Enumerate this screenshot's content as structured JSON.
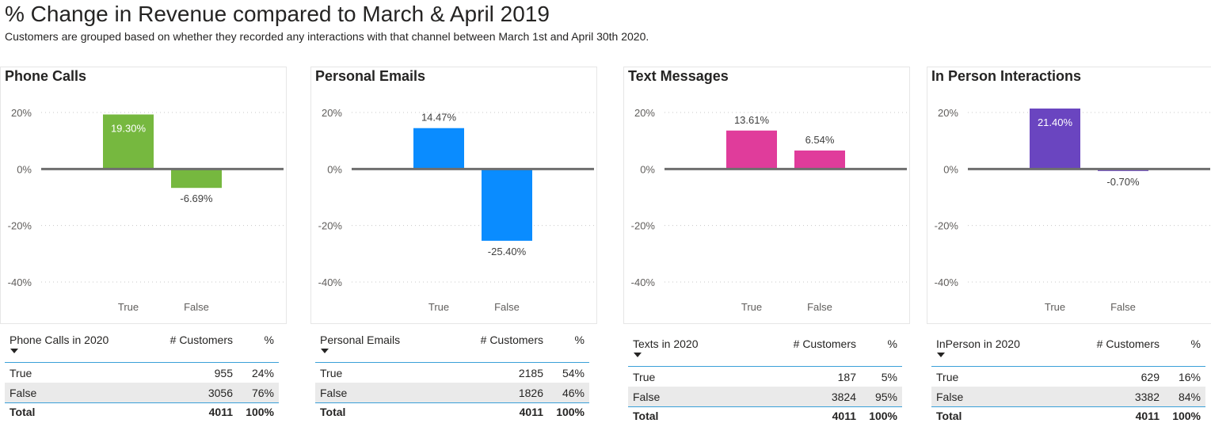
{
  "page": {
    "title": "% Change in Revenue compared to March & April 2019",
    "subtitle": "Customers are grouped based on whether they recorded any interactions with that channel between March 1st and April 30th 2020."
  },
  "chart_data": [
    {
      "type": "bar",
      "title": "Phone Calls",
      "categories": [
        "True",
        "False"
      ],
      "values": [
        19.3,
        -6.69
      ],
      "data_labels": [
        "19.30%",
        "-6.69%"
      ],
      "color": "#76b83f",
      "ylim": [
        -40,
        20
      ],
      "yticks": [
        "20%",
        "0%",
        "-20%",
        "-40%"
      ],
      "grid": true
    },
    {
      "type": "bar",
      "title": "Personal Emails",
      "categories": [
        "True",
        "False"
      ],
      "values": [
        14.47,
        -25.4
      ],
      "data_labels": [
        "14.47%",
        "-25.40%"
      ],
      "color": "#0a8cff",
      "ylim": [
        -40,
        20
      ],
      "yticks": [
        "20%",
        "0%",
        "-20%",
        "-40%"
      ],
      "grid": true
    },
    {
      "type": "bar",
      "title": "Text Messages",
      "categories": [
        "True",
        "False"
      ],
      "values": [
        13.61,
        6.54
      ],
      "data_labels": [
        "13.61%",
        "6.54%"
      ],
      "color": "#e03c9b",
      "ylim": [
        -40,
        20
      ],
      "yticks": [
        "20%",
        "0%",
        "-20%",
        "-40%"
      ],
      "grid": true
    },
    {
      "type": "bar",
      "title": "In Person Interactions",
      "categories": [
        "True",
        "False"
      ],
      "values": [
        21.4,
        -0.7
      ],
      "data_labels": [
        "21.40%",
        "-0.70%"
      ],
      "color": "#6a45c0",
      "ylim": [
        -40,
        20
      ],
      "yticks": [
        "20%",
        "0%",
        "-20%",
        "-40%"
      ],
      "grid": true
    }
  ],
  "tables": [
    {
      "headers": [
        "Phone Calls in 2020",
        "# Customers",
        "%"
      ],
      "rows": [
        [
          "True",
          "955",
          "24%"
        ],
        [
          "False",
          "3056",
          "76%"
        ]
      ],
      "total": [
        "Total",
        "4011",
        "100%"
      ]
    },
    {
      "headers": [
        "Personal Emails",
        "# Customers",
        "%"
      ],
      "rows": [
        [
          "True",
          "2185",
          "54%"
        ],
        [
          "False",
          "1826",
          "46%"
        ]
      ],
      "total": [
        "Total",
        "4011",
        "100%"
      ]
    },
    {
      "headers": [
        "Texts in 2020",
        "# Customers",
        "%"
      ],
      "rows": [
        [
          "True",
          "187",
          "5%"
        ],
        [
          "False",
          "3824",
          "95%"
        ]
      ],
      "total": [
        "Total",
        "4011",
        "100%"
      ]
    },
    {
      "headers": [
        "InPerson in 2020",
        "# Customers",
        "%"
      ],
      "rows": [
        [
          "True",
          "629",
          "16%"
        ],
        [
          "False",
          "3382",
          "84%"
        ]
      ],
      "total": [
        "Total",
        "4011",
        "100%"
      ]
    }
  ]
}
